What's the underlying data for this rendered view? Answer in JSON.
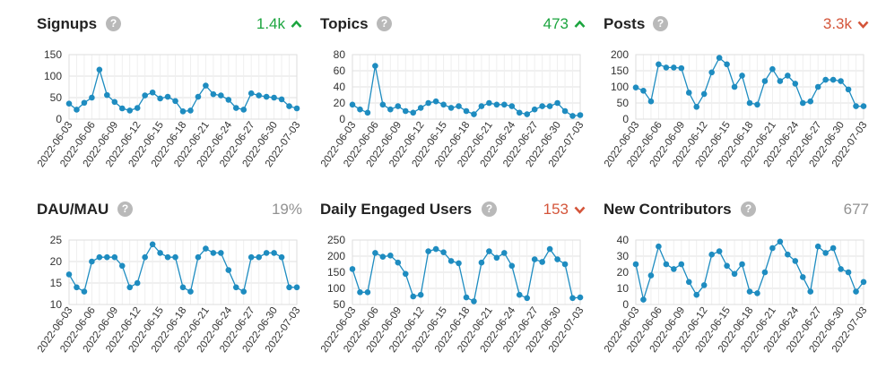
{
  "panels": [
    {
      "title": "Signups",
      "help_icon": "question-circle-icon",
      "trend_text": "1.4k",
      "trend_dir": "up",
      "colors": {
        "trend": "#1ca53f"
      },
      "chart_data": {
        "type": "line",
        "ylim": [
          0,
          150
        ],
        "yticks": [
          0,
          50,
          100,
          150
        ],
        "x": [
          "2022-06-03",
          "2022-06-04",
          "2022-06-05",
          "2022-06-06",
          "2022-06-07",
          "2022-06-08",
          "2022-06-09",
          "2022-06-10",
          "2022-06-11",
          "2022-06-12",
          "2022-06-13",
          "2022-06-14",
          "2022-06-15",
          "2022-06-16",
          "2022-06-17",
          "2022-06-18",
          "2022-06-19",
          "2022-06-20",
          "2022-06-21",
          "2022-06-22",
          "2022-06-23",
          "2022-06-24",
          "2022-06-25",
          "2022-06-26",
          "2022-06-27",
          "2022-06-28",
          "2022-06-29",
          "2022-06-30",
          "2022-07-01",
          "2022-07-02",
          "2022-07-03"
        ],
        "xtick_labels": [
          "2022-06-03",
          "2022-06-06",
          "2022-06-09",
          "2022-06-12",
          "2022-06-15",
          "2022-06-18",
          "2022-06-21",
          "2022-06-24",
          "2022-06-27",
          "2022-06-30",
          "2022-07-03"
        ],
        "values": [
          36,
          22,
          38,
          50,
          115,
          56,
          40,
          25,
          20,
          26,
          55,
          62,
          48,
          52,
          42,
          18,
          20,
          52,
          78,
          58,
          55,
          45,
          26,
          22,
          60,
          55,
          52,
          50,
          46,
          30,
          25
        ]
      }
    },
    {
      "title": "Topics",
      "help_icon": "question-circle-icon",
      "trend_text": "473",
      "trend_dir": "up",
      "colors": {
        "trend": "#1ca53f"
      },
      "chart_data": {
        "type": "line",
        "ylim": [
          0,
          80
        ],
        "yticks": [
          0,
          20,
          40,
          60,
          80
        ],
        "x": [
          "2022-06-03",
          "2022-06-04",
          "2022-06-05",
          "2022-06-06",
          "2022-06-07",
          "2022-06-08",
          "2022-06-09",
          "2022-06-10",
          "2022-06-11",
          "2022-06-12",
          "2022-06-13",
          "2022-06-14",
          "2022-06-15",
          "2022-06-16",
          "2022-06-17",
          "2022-06-18",
          "2022-06-19",
          "2022-06-20",
          "2022-06-21",
          "2022-06-22",
          "2022-06-23",
          "2022-06-24",
          "2022-06-25",
          "2022-06-26",
          "2022-06-27",
          "2022-06-28",
          "2022-06-29",
          "2022-06-30",
          "2022-07-01",
          "2022-07-02",
          "2022-07-03"
        ],
        "xtick_labels": [
          "2022-06-03",
          "2022-06-06",
          "2022-06-09",
          "2022-06-12",
          "2022-06-15",
          "2022-06-18",
          "2022-06-21",
          "2022-06-24",
          "2022-06-27",
          "2022-06-30",
          "2022-07-03"
        ],
        "values": [
          18,
          12,
          8,
          66,
          18,
          12,
          16,
          10,
          8,
          14,
          20,
          22,
          18,
          14,
          16,
          10,
          6,
          16,
          20,
          18,
          18,
          16,
          8,
          6,
          12,
          16,
          16,
          20,
          10,
          4,
          5
        ]
      }
    },
    {
      "title": "Posts",
      "help_icon": "question-circle-icon",
      "trend_text": "3.3k",
      "trend_dir": "down",
      "colors": {
        "trend": "#d4553a"
      },
      "chart_data": {
        "type": "line",
        "ylim": [
          0,
          200
        ],
        "yticks": [
          0,
          50,
          100,
          150,
          200
        ],
        "x": [
          "2022-06-03",
          "2022-06-04",
          "2022-06-05",
          "2022-06-06",
          "2022-06-07",
          "2022-06-08",
          "2022-06-09",
          "2022-06-10",
          "2022-06-11",
          "2022-06-12",
          "2022-06-13",
          "2022-06-14",
          "2022-06-15",
          "2022-06-16",
          "2022-06-17",
          "2022-06-18",
          "2022-06-19",
          "2022-06-20",
          "2022-06-21",
          "2022-06-22",
          "2022-06-23",
          "2022-06-24",
          "2022-06-25",
          "2022-06-26",
          "2022-06-27",
          "2022-06-28",
          "2022-06-29",
          "2022-06-30",
          "2022-07-01",
          "2022-07-02",
          "2022-07-03"
        ],
        "xtick_labels": [
          "2022-06-03",
          "2022-06-06",
          "2022-06-09",
          "2022-06-12",
          "2022-06-15",
          "2022-06-18",
          "2022-06-21",
          "2022-06-24",
          "2022-06-27",
          "2022-06-30",
          "2022-07-03"
        ],
        "values": [
          98,
          88,
          55,
          170,
          160,
          160,
          158,
          82,
          38,
          78,
          145,
          190,
          170,
          100,
          135,
          50,
          45,
          118,
          155,
          118,
          135,
          110,
          50,
          55,
          100,
          122,
          122,
          118,
          92,
          40,
          40
        ]
      }
    },
    {
      "title": "DAU/MAU",
      "help_icon": "question-circle-icon",
      "trend_text": "19%",
      "trend_dir": "flat",
      "colors": {
        "trend": "#919191"
      },
      "chart_data": {
        "type": "line",
        "ylim": [
          10,
          25
        ],
        "yticks": [
          10,
          15,
          20,
          25
        ],
        "x": [
          "2022-06-03",
          "2022-06-04",
          "2022-06-05",
          "2022-06-06",
          "2022-06-07",
          "2022-06-08",
          "2022-06-09",
          "2022-06-10",
          "2022-06-11",
          "2022-06-12",
          "2022-06-13",
          "2022-06-14",
          "2022-06-15",
          "2022-06-16",
          "2022-06-17",
          "2022-06-18",
          "2022-06-19",
          "2022-06-20",
          "2022-06-21",
          "2022-06-22",
          "2022-06-23",
          "2022-06-24",
          "2022-06-25",
          "2022-06-26",
          "2022-06-27",
          "2022-06-28",
          "2022-06-29",
          "2022-06-30",
          "2022-07-01",
          "2022-07-02",
          "2022-07-03"
        ],
        "xtick_labels": [
          "2022-06-03",
          "2022-06-06",
          "2022-06-09",
          "2022-06-12",
          "2022-06-15",
          "2022-06-18",
          "2022-06-21",
          "2022-06-24",
          "2022-06-27",
          "2022-06-30",
          "2022-07-03"
        ],
        "values": [
          17,
          14,
          13,
          20,
          21,
          21,
          21,
          19,
          14,
          15,
          21,
          24,
          22,
          21,
          21,
          14,
          13,
          21,
          23,
          22,
          22,
          18,
          14,
          13,
          21,
          21,
          22,
          22,
          21,
          14,
          14
        ]
      }
    },
    {
      "title": "Daily Engaged Users",
      "help_icon": "question-circle-icon",
      "trend_text": "153",
      "trend_dir": "down",
      "colors": {
        "trend": "#d4553a"
      },
      "chart_data": {
        "type": "line",
        "ylim": [
          50,
          250
        ],
        "yticks": [
          50,
          100,
          150,
          200,
          250
        ],
        "x": [
          "2022-06-03",
          "2022-06-04",
          "2022-06-05",
          "2022-06-06",
          "2022-06-07",
          "2022-06-08",
          "2022-06-09",
          "2022-06-10",
          "2022-06-11",
          "2022-06-12",
          "2022-06-13",
          "2022-06-14",
          "2022-06-15",
          "2022-06-16",
          "2022-06-17",
          "2022-06-18",
          "2022-06-19",
          "2022-06-20",
          "2022-06-21",
          "2022-06-22",
          "2022-06-23",
          "2022-06-24",
          "2022-06-25",
          "2022-06-26",
          "2022-06-27",
          "2022-06-28",
          "2022-06-29",
          "2022-06-30",
          "2022-07-01",
          "2022-07-02",
          "2022-07-03"
        ],
        "xtick_labels": [
          "2022-06-03",
          "2022-06-06",
          "2022-06-09",
          "2022-06-12",
          "2022-06-15",
          "2022-06-18",
          "2022-06-21",
          "2022-06-24",
          "2022-06-27",
          "2022-06-30",
          "2022-07-03"
        ],
        "values": [
          160,
          88,
          88,
          210,
          198,
          202,
          180,
          145,
          75,
          80,
          215,
          222,
          212,
          185,
          178,
          72,
          60,
          180,
          215,
          195,
          210,
          170,
          80,
          70,
          190,
          182,
          222,
          190,
          175,
          70,
          72
        ]
      }
    },
    {
      "title": "New Contributors",
      "help_icon": "question-circle-icon",
      "trend_text": "677",
      "trend_dir": "flat",
      "colors": {
        "trend": "#919191"
      },
      "chart_data": {
        "type": "line",
        "ylim": [
          0,
          40
        ],
        "yticks": [
          0,
          10,
          20,
          30,
          40
        ],
        "x": [
          "2022-06-03",
          "2022-06-04",
          "2022-06-05",
          "2022-06-06",
          "2022-06-07",
          "2022-06-08",
          "2022-06-09",
          "2022-06-10",
          "2022-06-11",
          "2022-06-12",
          "2022-06-13",
          "2022-06-14",
          "2022-06-15",
          "2022-06-16",
          "2022-06-17",
          "2022-06-18",
          "2022-06-19",
          "2022-06-20",
          "2022-06-21",
          "2022-06-22",
          "2022-06-23",
          "2022-06-24",
          "2022-06-25",
          "2022-06-26",
          "2022-06-27",
          "2022-06-28",
          "2022-06-29",
          "2022-06-30",
          "2022-07-01",
          "2022-07-02",
          "2022-07-03"
        ],
        "xtick_labels": [
          "2022-06-03",
          "2022-06-06",
          "2022-06-09",
          "2022-06-12",
          "2022-06-15",
          "2022-06-18",
          "2022-06-21",
          "2022-06-24",
          "2022-06-27",
          "2022-06-30",
          "2022-07-03"
        ],
        "values": [
          25,
          3,
          18,
          36,
          25,
          22,
          25,
          14,
          6,
          12,
          31,
          33,
          24,
          19,
          25,
          8,
          7,
          20,
          35,
          39,
          31,
          27,
          17,
          8,
          36,
          32,
          35,
          22,
          20,
          8,
          14
        ]
      }
    }
  ],
  "style": {
    "line_color": "#1e8cc0",
    "grid_color": "#e2e2e2",
    "axis_text_color": "#333333"
  }
}
